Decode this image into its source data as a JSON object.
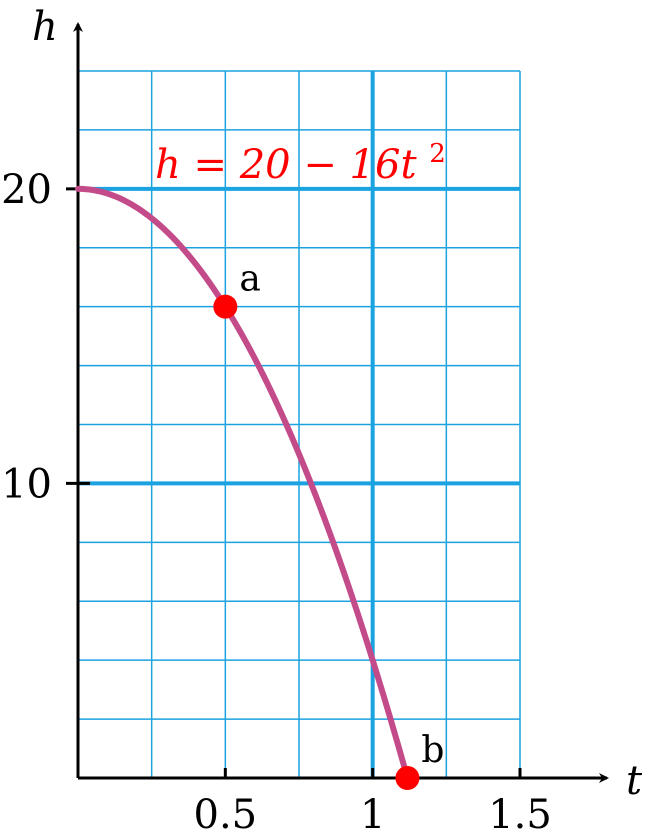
{
  "chart_data": {
    "type": "line",
    "equation": {
      "prefix": "h = 20 − 16t",
      "exponent": "2"
    },
    "xlabel": "t",
    "ylabel": "h",
    "xlim": [
      0,
      1.5
    ],
    "ylim": [
      0,
      24
    ],
    "x_ticks": [
      {
        "value": 0.5,
        "label": "0.5"
      },
      {
        "value": 1,
        "label": "1"
      },
      {
        "value": 1.5,
        "label": "1.5"
      }
    ],
    "y_ticks": [
      {
        "value": 10,
        "label": "10"
      },
      {
        "value": 20,
        "label": "20"
      }
    ],
    "x_grid_step": 0.25,
    "y_grid_step": 2,
    "major_x_gridlines": [
      1
    ],
    "major_y_gridlines": [
      10,
      20
    ],
    "grid": true,
    "series": [
      {
        "function": "20 - 16*t^2",
        "t_start": 0,
        "t_end": 1.118,
        "color": "#c44b8a"
      }
    ],
    "points": [
      {
        "label": "a",
        "x": 0.5,
        "y": 16,
        "color": "#ff0000"
      },
      {
        "label": "b",
        "x": 1.118,
        "y": 0,
        "color": "#ff0000"
      }
    ]
  }
}
